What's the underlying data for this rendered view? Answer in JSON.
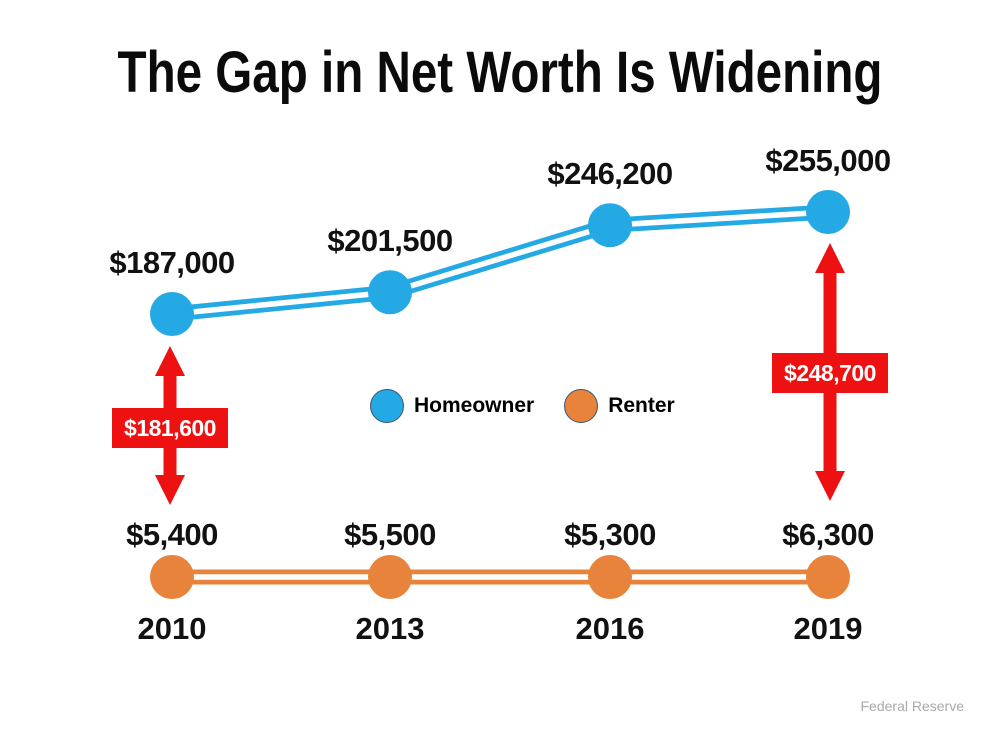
{
  "title": "The Gap in Net Worth Is Widening",
  "source": "Federal Reserve",
  "colors": {
    "homeowner": "#25a9e4",
    "renter": "#e8833c",
    "gap_red": "#ee1111",
    "text": "#111111",
    "source_text": "#a9a9a9"
  },
  "legend": {
    "items": [
      {
        "label": "Homeowner",
        "color": "#25a9e4"
      },
      {
        "label": "Renter",
        "color": "#e8833c"
      }
    ]
  },
  "chart_data": {
    "type": "line",
    "title": "The Gap in Net Worth Is Widening",
    "categories": [
      "2010",
      "2013",
      "2016",
      "2019"
    ],
    "series": [
      {
        "name": "Homeowner",
        "color": "#25a9e4",
        "values": [
          187000,
          201500,
          246200,
          255000
        ],
        "value_labels": [
          "$187,000",
          "$201,500",
          "$246,200",
          "$255,000"
        ]
      },
      {
        "name": "Renter",
        "color": "#e8833c",
        "values": [
          5400,
          5500,
          5300,
          6300
        ],
        "value_labels": [
          "$5,400",
          "$5,500",
          "$5,300",
          "$6,300"
        ]
      }
    ],
    "annotations": [
      {
        "type": "gap-arrow",
        "category": "2010",
        "label": "$181,600",
        "value": 181600,
        "color": "#ee1111"
      },
      {
        "type": "gap-arrow",
        "category": "2019",
        "label": "$248,700",
        "value": 248700,
        "color": "#ee1111"
      }
    ],
    "xlabel": "",
    "ylabel": "",
    "grid": false,
    "axes_hidden": true,
    "legend_position": "center",
    "marker_style": "filled-circle",
    "line_style": "double-line",
    "source": "Federal Reserve"
  }
}
